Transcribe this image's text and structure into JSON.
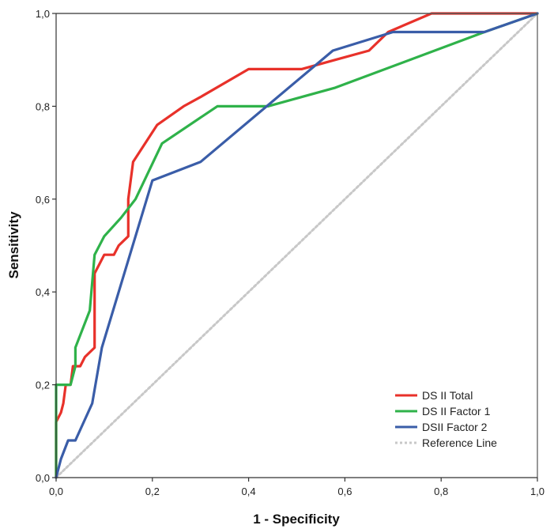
{
  "chart_data": {
    "type": "line",
    "xlabel": "1 - Specificity",
    "ylabel": "Sensitivity",
    "xlim": [
      0,
      1
    ],
    "ylim": [
      0,
      1
    ],
    "xticks": [
      "0,0",
      "0,2",
      "0,4",
      "0,6",
      "0,8",
      "1,0"
    ],
    "yticks": [
      "0,0",
      "0,2",
      "0,4",
      "0,6",
      "0,8",
      "1,0"
    ],
    "grid": false,
    "legend_position": "bottom-right",
    "series": [
      {
        "name": "DS II Total",
        "color": "#e8312a",
        "dashed": false,
        "points": [
          [
            0,
            0
          ],
          [
            0,
            0.12
          ],
          [
            0.01,
            0.14
          ],
          [
            0.015,
            0.16
          ],
          [
            0.02,
            0.2
          ],
          [
            0.03,
            0.2
          ],
          [
            0.035,
            0.24
          ],
          [
            0.05,
            0.24
          ],
          [
            0.06,
            0.26
          ],
          [
            0.08,
            0.28
          ],
          [
            0.08,
            0.44
          ],
          [
            0.09,
            0.46
          ],
          [
            0.1,
            0.48
          ],
          [
            0.12,
            0.48
          ],
          [
            0.13,
            0.5
          ],
          [
            0.15,
            0.52
          ],
          [
            0.15,
            0.6
          ],
          [
            0.16,
            0.68
          ],
          [
            0.21,
            0.76
          ],
          [
            0.265,
            0.8
          ],
          [
            0.3,
            0.82
          ],
          [
            0.4,
            0.88
          ],
          [
            0.51,
            0.88
          ],
          [
            0.58,
            0.9
          ],
          [
            0.65,
            0.92
          ],
          [
            0.69,
            0.96
          ],
          [
            0.78,
            1.0
          ],
          [
            1.0,
            1.0
          ]
        ]
      },
      {
        "name": "DS II Factor 1",
        "color": "#2fb24a",
        "dashed": false,
        "points": [
          [
            0,
            0
          ],
          [
            0,
            0.2
          ],
          [
            0.02,
            0.2
          ],
          [
            0.03,
            0.2
          ],
          [
            0.04,
            0.24
          ],
          [
            0.04,
            0.28
          ],
          [
            0.07,
            0.36
          ],
          [
            0.08,
            0.48
          ],
          [
            0.1,
            0.52
          ],
          [
            0.135,
            0.56
          ],
          [
            0.165,
            0.6
          ],
          [
            0.22,
            0.72
          ],
          [
            0.335,
            0.8
          ],
          [
            0.44,
            0.8
          ],
          [
            0.58,
            0.84
          ],
          [
            0.89,
            0.96
          ],
          [
            1.0,
            1.0
          ]
        ]
      },
      {
        "name": "DSII Factor 2",
        "color": "#3a5da8",
        "dashed": false,
        "points": [
          [
            0,
            0
          ],
          [
            0.01,
            0.04
          ],
          [
            0.025,
            0.08
          ],
          [
            0.04,
            0.08
          ],
          [
            0.075,
            0.16
          ],
          [
            0.095,
            0.28
          ],
          [
            0.2,
            0.64
          ],
          [
            0.3,
            0.68
          ],
          [
            0.575,
            0.92
          ],
          [
            0.7,
            0.96
          ],
          [
            0.89,
            0.96
          ],
          [
            1.0,
            1.0
          ]
        ]
      },
      {
        "name": "Reference Line",
        "color": "#c8c8c8",
        "dashed": true,
        "points": [
          [
            0,
            0
          ],
          [
            1,
            1
          ]
        ]
      }
    ]
  }
}
